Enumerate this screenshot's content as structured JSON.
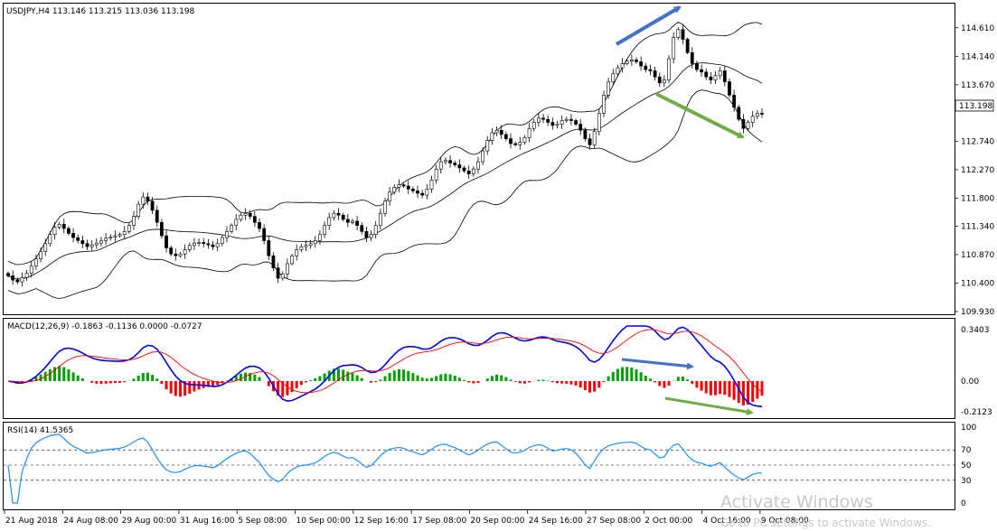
{
  "chart_data": {
    "type": "candlestick",
    "symbol_header": "USDJPY,H4  113.146 113.215 113.036 113.198",
    "current_price_label": "113.198",
    "price_axis_ticks": [
      114.61,
      114.14,
      113.67,
      113.198,
      112.74,
      112.27,
      111.8,
      111.34,
      110.87,
      110.4,
      109.93
    ],
    "price_axis_tick_labels": [
      "114.610",
      "114.140",
      "113.670",
      "113.198",
      "112.740",
      "112.270",
      "111.800",
      "111.340",
      "110.870",
      "110.400",
      "109.930"
    ],
    "ylim": [
      109.93,
      114.8
    ],
    "time_axis_labels": [
      "21 Aug 2018",
      "24 Aug 08:00",
      "29 Aug 00:00",
      "31 Aug 16:00",
      "5 Sep 08:00",
      "10 Sep 00:00",
      "12 Sep 16:00",
      "17 Sep 08:00",
      "20 Sep 00:00",
      "24 Sep 16:00",
      "27 Sep 08:00",
      "2 Oct 00:00",
      "4 Oct 16:00",
      "9 Oct 08:00"
    ],
    "close_series": [
      110.52,
      110.45,
      110.42,
      110.49,
      110.56,
      110.68,
      110.8,
      110.92,
      111.05,
      111.2,
      111.32,
      111.37,
      111.3,
      111.22,
      111.15,
      111.1,
      111.05,
      111.0,
      111.03,
      111.06,
      111.1,
      111.14,
      111.16,
      111.18,
      111.2,
      111.25,
      111.35,
      111.5,
      111.7,
      111.82,
      111.75,
      111.6,
      111.4,
      111.18,
      110.98,
      110.88,
      110.85,
      110.88,
      110.95,
      111.02,
      111.06,
      111.07,
      111.05,
      111.03,
      111.0,
      111.05,
      111.15,
      111.25,
      111.35,
      111.45,
      111.52,
      111.55,
      111.5,
      111.4,
      111.3,
      111.1,
      110.85,
      110.65,
      110.48,
      110.55,
      110.72,
      110.85,
      110.95,
      111.0,
      111.02,
      111.05,
      111.1,
      111.2,
      111.35,
      111.48,
      111.55,
      111.52,
      111.45,
      111.4,
      111.42,
      111.35,
      111.25,
      111.15,
      111.2,
      111.35,
      111.55,
      111.75,
      111.9,
      111.98,
      112.02,
      112.0,
      111.95,
      111.92,
      111.88,
      111.85,
      111.95,
      112.1,
      112.28,
      112.4,
      112.42,
      112.38,
      112.35,
      112.3,
      112.25,
      112.2,
      112.28,
      112.4,
      112.58,
      112.75,
      112.88,
      112.92,
      112.85,
      112.78,
      112.7,
      112.68,
      112.72,
      112.8,
      112.95,
      113.05,
      113.12,
      113.1,
      113.05,
      113.0,
      113.02,
      113.08,
      113.1,
      113.08,
      113.02,
      112.92,
      112.78,
      112.68,
      112.9,
      113.2,
      113.5,
      113.72,
      113.85,
      113.95,
      114.02,
      114.06,
      114.08,
      114.05,
      113.98,
      113.92,
      113.9,
      113.8,
      113.7,
      113.75,
      114.1,
      114.45,
      114.58,
      114.42,
      114.2,
      114.02,
      113.92,
      113.88,
      113.8,
      113.75,
      113.82,
      113.9,
      113.72,
      113.5,
      113.3,
      113.1,
      112.95,
      113.05,
      113.15,
      113.2,
      113.198
    ],
    "bollinger_period": 20,
    "bollinger_deviation": 2,
    "macd": {
      "label": "MACD(12,26,9) -0.1863 -0.1136 0.0000 -0.0727",
      "ticks": [
        0.3403,
        0.0,
        -0.2123
      ],
      "tick_labels": [
        "0.3403",
        "0.00",
        "-0.2123"
      ],
      "ylim": [
        -0.2123,
        0.3403
      ],
      "fast": 12,
      "slow": 26,
      "signal": 9
    },
    "rsi": {
      "label": "RSI(14) 41.5365",
      "ticks": [
        100,
        70,
        50,
        30,
        0
      ],
      "tick_labels": [
        "100",
        "70",
        "50",
        "30",
        "0"
      ],
      "levels": [
        70,
        50,
        30
      ],
      "ylim": [
        0,
        100
      ],
      "period": 14
    },
    "colors": {
      "candle_up_fill": "#ffffff",
      "candle_down_fill": "#000000",
      "candle_line": "#000000",
      "bands": "#000000",
      "macd_line": "#0000ff",
      "signal_line": "#ff0000",
      "hist_up": "#00a000",
      "hist_down": "#ff0000",
      "rsi_line": "#1e90ff",
      "arrow_blue": "#4472c4",
      "arrow_green": "#70ad47",
      "grid_level": "#000000"
    },
    "annotations": [
      {
        "type": "arrow",
        "color": "blue",
        "panel": "price"
      },
      {
        "type": "arrow",
        "color": "green",
        "panel": "price"
      },
      {
        "type": "arrow",
        "color": "blue",
        "panel": "macd"
      },
      {
        "type": "arrow",
        "color": "green",
        "panel": "macd"
      }
    ]
  },
  "watermark": {
    "line1": "Activate Windows",
    "line2": "Go to PC settings to activate Windows."
  }
}
